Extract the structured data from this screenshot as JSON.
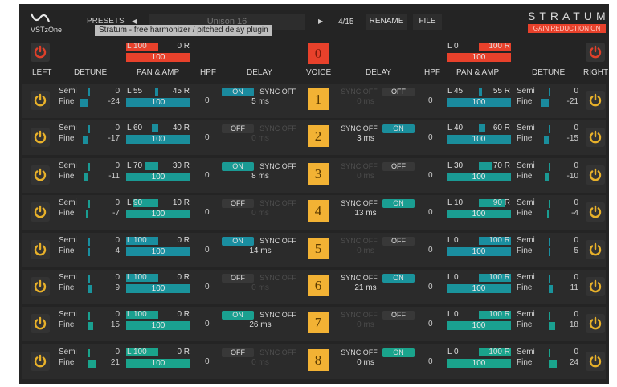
{
  "header": {
    "logo_text": "VSTzOne",
    "presets_label": "PRESETS",
    "preset_name": "Unison 16",
    "preset_index": "4/15",
    "rename_label": "RENAME",
    "file_label": "FILE",
    "brand": "STRATUM",
    "gain_reduction_badge": "GAIN REDUCTION ON",
    "tooltip": "Stratum - free harmonizer / pitched delay plugin"
  },
  "colors": {
    "master": "#e8412b",
    "voice_box": "#f2b234",
    "power_on": "#e8b12a",
    "power_master": "#e0402a",
    "teal": "#1b9a9a"
  },
  "columns": [
    "LEFT",
    "DETUNE",
    "PAN & AMP",
    "HPF",
    "DELAY",
    "VOICE",
    "DELAY",
    "HPF",
    "PAN & AMP",
    "DETUNE",
    "RIGHT"
  ],
  "master": {
    "voice": "0",
    "left": {
      "pan_l": "L 100",
      "pan_r": "0 R",
      "amp": "100"
    },
    "right": {
      "pan_l": "L 0",
      "pan_r": "100 R",
      "amp": "100"
    }
  },
  "labels": {
    "semi": "Semi",
    "fine": "Fine",
    "on": "ON",
    "off": "OFF"
  },
  "rows": [
    {
      "voice": "1",
      "accent": "#1a8a9e",
      "left": {
        "semi": "0",
        "fine": "-24",
        "pan_l": "L 55",
        "pan_r": "45 R",
        "amp": "100",
        "hpf": "0",
        "delay": "ON",
        "sync": "SYNC OFF",
        "ms": "5 ms"
      },
      "right": {
        "semi": "0",
        "fine": "-21",
        "pan_l": "L 45",
        "pan_r": "55 R",
        "amp": "100",
        "hpf": "0",
        "delay": "OFF",
        "sync": "SYNC OFF",
        "ms": "0 ms"
      }
    },
    {
      "voice": "2",
      "accent": "#1a8e9c",
      "left": {
        "semi": "0",
        "fine": "-17",
        "pan_l": "L 60",
        "pan_r": "40 R",
        "amp": "100",
        "hpf": "0",
        "delay": "OFF",
        "sync": "SYNC OFF",
        "ms": "0 ms"
      },
      "right": {
        "semi": "0",
        "fine": "-15",
        "pan_l": "L 40",
        "pan_r": "60 R",
        "amp": "100",
        "hpf": "0",
        "delay": "ON",
        "sync": "SYNC OFF",
        "ms": "3 ms"
      }
    },
    {
      "voice": "3",
      "accent": "#1a9a94",
      "left": {
        "semi": "0",
        "fine": "-11",
        "pan_l": "L 70",
        "pan_r": "30 R",
        "amp": "100",
        "hpf": "0",
        "delay": "ON",
        "sync": "SYNC OFF",
        "ms": "8 ms"
      },
      "right": {
        "semi": "0",
        "fine": "-10",
        "pan_l": "L 30",
        "pan_r": "70 R",
        "amp": "100",
        "hpf": "0",
        "delay": "OFF",
        "sync": "SYNC OFF",
        "ms": "0 ms"
      }
    },
    {
      "voice": "4",
      "accent": "#1a9e92",
      "left": {
        "semi": "0",
        "fine": "-7",
        "pan_l": "L 90",
        "pan_r": "10 R",
        "amp": "100",
        "hpf": "0",
        "delay": "OFF",
        "sync": "SYNC OFF",
        "ms": "0 ms"
      },
      "right": {
        "semi": "0",
        "fine": "-4",
        "pan_l": "L 10",
        "pan_r": "90 R",
        "amp": "100",
        "hpf": "0",
        "delay": "ON",
        "sync": "SYNC OFF",
        "ms": "13 ms"
      }
    },
    {
      "voice": "5",
      "accent": "#1a8ea0",
      "left": {
        "semi": "0",
        "fine": "4",
        "pan_l": "L 100",
        "pan_r": "0 R",
        "amp": "100",
        "hpf": "0",
        "delay": "ON",
        "sync": "SYNC OFF",
        "ms": "14 ms"
      },
      "right": {
        "semi": "0",
        "fine": "5",
        "pan_l": "L 0",
        "pan_r": "100 R",
        "amp": "100",
        "hpf": "0",
        "delay": "OFF",
        "sync": "SYNC OFF",
        "ms": "0 ms"
      }
    },
    {
      "voice": "6",
      "accent": "#1a949c",
      "left": {
        "semi": "0",
        "fine": "9",
        "pan_l": "L 100",
        "pan_r": "0 R",
        "amp": "100",
        "hpf": "0",
        "delay": "OFF",
        "sync": "SYNC OFF",
        "ms": "0 ms"
      },
      "right": {
        "semi": "0",
        "fine": "11",
        "pan_l": "L 0",
        "pan_r": "100 R",
        "amp": "100",
        "hpf": "0",
        "delay": "ON",
        "sync": "SYNC OFF",
        "ms": "21 ms"
      }
    },
    {
      "voice": "7",
      "accent": "#1aa090",
      "left": {
        "semi": "0",
        "fine": "15",
        "pan_l": "L 100",
        "pan_r": "0 R",
        "amp": "100",
        "hpf": "0",
        "delay": "ON",
        "sync": "SYNC OFF",
        "ms": "26 ms"
      },
      "right": {
        "semi": "0",
        "fine": "18",
        "pan_l": "L 0",
        "pan_r": "100 R",
        "amp": "100",
        "hpf": "0",
        "delay": "OFF",
        "sync": "SYNC OFF",
        "ms": "0 ms"
      }
    },
    {
      "voice": "8",
      "accent": "#1aa48c",
      "left": {
        "semi": "0",
        "fine": "21",
        "pan_l": "L 100",
        "pan_r": "0 R",
        "amp": "100",
        "hpf": "0",
        "delay": "OFF",
        "sync": "SYNC OFF",
        "ms": "0 ms"
      },
      "right": {
        "semi": "0",
        "fine": "24",
        "pan_l": "L 0",
        "pan_r": "100 R",
        "amp": "100",
        "hpf": "0",
        "delay": "ON",
        "sync": "SYNC OFF",
        "ms": "0 ms"
      }
    }
  ]
}
